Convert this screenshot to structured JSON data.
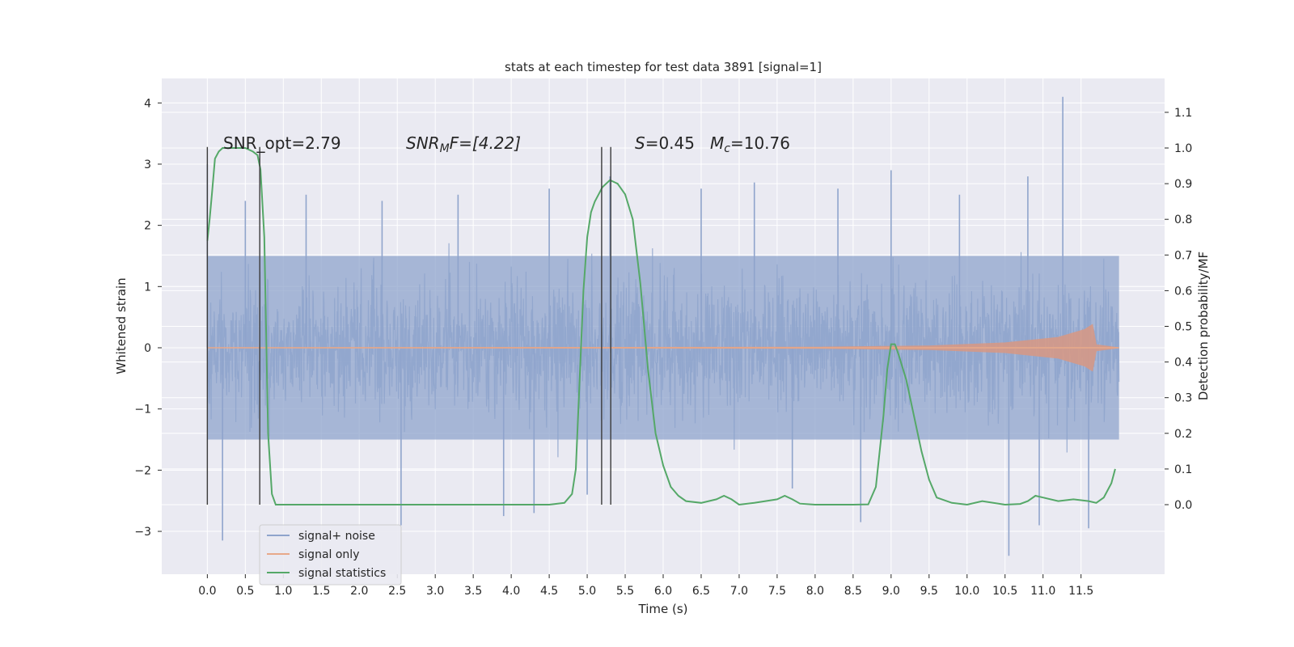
{
  "chart_data": {
    "type": "line",
    "title": "stats at each timestep for test data 3891 [signal=1]",
    "xlabel": "Time (s)",
    "ylabel": "Whitened strain",
    "y2label": "Detection probability/MF",
    "xlim": [
      -0.6,
      12.6
    ],
    "ylim": [
      -3.7,
      4.4
    ],
    "y2lim": [
      -0.195,
      1.195
    ],
    "grid": true,
    "legend_position": "lower-left",
    "x_ticks": [
      "0.0",
      "0.5",
      "1.0",
      "1.5",
      "2.0",
      "2.5",
      "3.0",
      "3.5",
      "4.0",
      "4.5",
      "5.0",
      "5.5",
      "6.0",
      "6.5",
      "7.0",
      "7.5",
      "8.0",
      "8.5",
      "9.0",
      "9.5",
      "10.0",
      "10.5",
      "11.0",
      "11.5"
    ],
    "y_ticks": [
      "4",
      "3",
      "2",
      "1",
      "0",
      "−1",
      "−2",
      "−3"
    ],
    "y2_ticks": [
      "1.1",
      "1.0",
      "0.9",
      "0.8",
      "0.7",
      "0.6",
      "0.5",
      "0.4",
      "0.3",
      "0.2",
      "0.1",
      "0.0"
    ],
    "annotations": {
      "snr_opt": "SNR_opt=2.79",
      "snr_mf_main": "SNR",
      "snr_mf_sub": "M",
      "snr_mf_rest": "F=[4.22]",
      "s_main": "S",
      "s_rest": "=0.45",
      "mc_main": "M",
      "mc_sub": "c",
      "mc_rest": "=10.76"
    },
    "vertical_markers_s": [
      0.0,
      0.69,
      5.19,
      5.31
    ],
    "series": [
      {
        "name": "signal+ noise",
        "color": "#8fa4cc",
        "x_range": [
          0.0,
          12.0
        ],
        "typical_band": [
          -1.5,
          1.5
        ],
        "peaks": [
          [
            0.0,
            3.0
          ],
          [
            0.5,
            2.4
          ],
          [
            1.3,
            2.5
          ],
          [
            2.3,
            2.4
          ],
          [
            3.3,
            2.5
          ],
          [
            4.5,
            2.6
          ],
          [
            5.3,
            2.8
          ],
          [
            6.5,
            2.6
          ],
          [
            7.2,
            2.7
          ],
          [
            8.3,
            2.6
          ],
          [
            9.0,
            2.9
          ],
          [
            9.9,
            2.5
          ],
          [
            10.8,
            2.8
          ],
          [
            11.26,
            4.1
          ],
          [
            0.2,
            -3.15
          ],
          [
            2.55,
            -2.9
          ],
          [
            3.9,
            -2.75
          ],
          [
            4.3,
            -2.7
          ],
          [
            5.0,
            -2.4
          ],
          [
            7.7,
            -2.3
          ],
          [
            8.6,
            -2.85
          ],
          [
            10.55,
            -3.4
          ],
          [
            10.95,
            -2.9
          ],
          [
            11.6,
            -2.95
          ]
        ]
      },
      {
        "name": "signal only",
        "color": "#dd8452",
        "x_range": [
          0.0,
          12.0
        ],
        "envelope": [
          [
            0.0,
            0.0
          ],
          [
            8.0,
            0.01
          ],
          [
            9.5,
            0.03
          ],
          [
            10.5,
            0.08
          ],
          [
            11.2,
            0.17
          ],
          [
            11.55,
            0.3
          ],
          [
            11.65,
            0.38
          ],
          [
            11.7,
            0.05
          ],
          [
            12.0,
            0.0
          ]
        ]
      },
      {
        "name": "signal statistics",
        "color": "#55a868",
        "x": [
          0.0,
          0.03,
          0.06,
          0.1,
          0.15,
          0.2,
          0.3,
          0.4,
          0.5,
          0.6,
          0.66,
          0.7,
          0.75,
          0.8,
          0.85,
          0.9,
          1.0,
          1.5,
          2.0,
          3.0,
          4.0,
          4.5,
          4.7,
          4.8,
          4.85,
          4.9,
          4.95,
          5.0,
          5.05,
          5.1,
          5.15,
          5.2,
          5.3,
          5.4,
          5.5,
          5.6,
          5.7,
          5.8,
          5.9,
          6.0,
          6.1,
          6.2,
          6.3,
          6.5,
          6.7,
          6.8,
          6.9,
          7.0,
          7.2,
          7.5,
          7.6,
          7.7,
          7.8,
          8.0,
          8.5,
          8.7,
          8.8,
          8.9,
          8.95,
          9.0,
          9.05,
          9.1,
          9.2,
          9.3,
          9.4,
          9.5,
          9.6,
          9.8,
          10.0,
          10.2,
          10.5,
          10.7,
          10.8,
          10.9,
          11.0,
          11.2,
          11.4,
          11.6,
          11.7,
          11.8,
          11.9,
          11.95
        ],
        "y": [
          0.74,
          0.8,
          0.87,
          0.97,
          0.99,
          1.0,
          1.0,
          1.0,
          1.0,
          0.99,
          0.98,
          0.94,
          0.75,
          0.2,
          0.03,
          0.0,
          0.0,
          0.0,
          0.0,
          0.0,
          0.0,
          0.0,
          0.005,
          0.03,
          0.1,
          0.35,
          0.6,
          0.75,
          0.82,
          0.85,
          0.87,
          0.89,
          0.91,
          0.9,
          0.87,
          0.8,
          0.62,
          0.38,
          0.2,
          0.11,
          0.05,
          0.025,
          0.01,
          0.005,
          0.015,
          0.025,
          0.015,
          0.0,
          0.005,
          0.015,
          0.025,
          0.015,
          0.003,
          0.0,
          0.0,
          0.001,
          0.05,
          0.25,
          0.38,
          0.45,
          0.45,
          0.42,
          0.35,
          0.25,
          0.15,
          0.07,
          0.02,
          0.005,
          0.0,
          0.01,
          0.0,
          0.002,
          0.01,
          0.025,
          0.02,
          0.01,
          0.015,
          0.01,
          0.005,
          0.02,
          0.06,
          0.1
        ]
      }
    ]
  }
}
